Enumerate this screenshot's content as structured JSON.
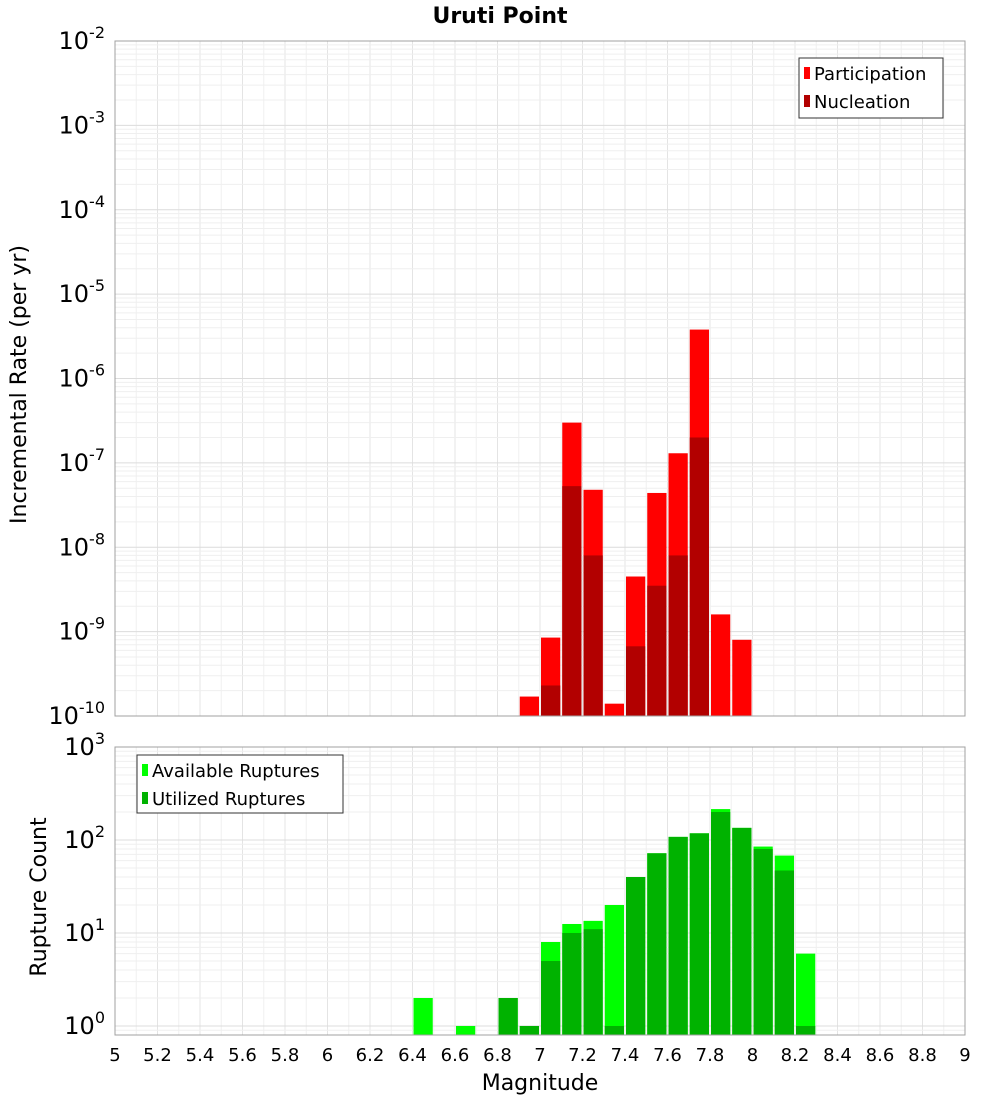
{
  "title": "Uruti Point",
  "xlabel": "Magnitude",
  "chart_data": [
    {
      "type": "bar",
      "title": "Uruti Point",
      "xlabel": "Magnitude",
      "ylabel": "Incremental Rate (per yr)",
      "yscale": "log",
      "xlim": [
        5,
        9
      ],
      "ylim": [
        1e-10,
        0.01
      ],
      "ytick_exponents": [
        -10,
        -9,
        -8,
        -7,
        -6,
        -5,
        -4,
        -3,
        -2
      ],
      "grid": true,
      "legend_position": "top-right",
      "bar_width": 0.1,
      "series": [
        {
          "name": "Participation",
          "color": "#ff0000",
          "x": [
            6.95,
            7.05,
            7.15,
            7.25,
            7.35,
            7.45,
            7.55,
            7.65,
            7.75,
            7.85,
            7.95
          ],
          "values": [
            1.7e-10,
            8.5e-10,
            3e-07,
            4.8e-08,
            1.4e-10,
            4.5e-09,
            4.4e-08,
            1.3e-07,
            3.8e-06,
            1.6e-09,
            8e-10
          ]
        },
        {
          "name": "Nucleation",
          "color": "#b20000",
          "x": [
            6.95,
            7.05,
            7.15,
            7.25,
            7.35,
            7.45,
            7.55,
            7.65,
            7.75,
            7.85,
            7.95
          ],
          "values": [
            0,
            2.3e-10,
            5.3e-08,
            8e-09,
            0,
            6.7e-10,
            3.5e-09,
            8e-09,
            2e-07,
            0,
            0
          ]
        }
      ]
    },
    {
      "type": "bar",
      "xlabel": "Magnitude",
      "ylabel": "Rupture Count",
      "yscale": "log",
      "xlim": [
        5,
        9
      ],
      "ylim": [
        0.8,
        1000
      ],
      "ytick_exponents": [
        0,
        1,
        2,
        3
      ],
      "xticks": [
        "5",
        "5.2",
        "5.4",
        "5.6",
        "5.8",
        "6",
        "6.2",
        "6.4",
        "6.6",
        "6.8",
        "7",
        "7.2",
        "7.4",
        "7.6",
        "7.8",
        "8",
        "8.2",
        "8.4",
        "8.6",
        "8.8",
        "9"
      ],
      "grid": true,
      "legend_position": "top-left",
      "bar_width": 0.1,
      "series": [
        {
          "name": "Available Ruptures",
          "color": "#00ff00",
          "x": [
            6.45,
            6.65,
            6.85,
            6.95,
            7.05,
            7.15,
            7.25,
            7.35,
            7.45,
            7.55,
            7.65,
            7.75,
            7.85,
            7.95,
            8.05,
            8.15,
            8.25
          ],
          "values": [
            2,
            1,
            2,
            1,
            8,
            12.5,
            13.5,
            20,
            40,
            72,
            108,
            118,
            215,
            135,
            85,
            68,
            6
          ]
        },
        {
          "name": "Utilized Ruptures",
          "color": "#00b200",
          "x": [
            6.45,
            6.65,
            6.85,
            6.95,
            7.05,
            7.15,
            7.25,
            7.35,
            7.45,
            7.55,
            7.65,
            7.75,
            7.85,
            7.95,
            8.05,
            8.15,
            8.25
          ],
          "values": [
            0,
            0,
            2,
            1,
            5,
            10,
            11,
            1,
            40,
            72,
            108,
            118,
            200,
            135,
            80,
            47,
            1
          ]
        }
      ]
    }
  ]
}
